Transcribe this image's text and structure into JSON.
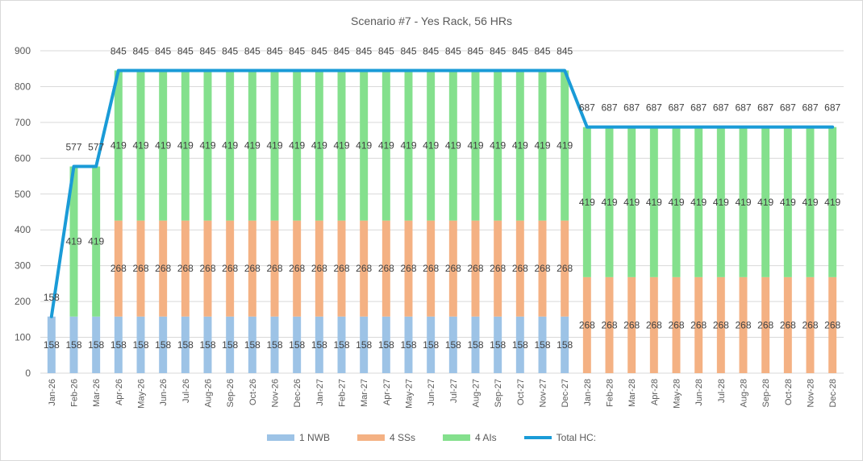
{
  "chart_data": {
    "type": "bar",
    "stacked": true,
    "title": "Scenario #7 - Yes Rack, 56 HRs",
    "xlabel": "",
    "ylabel": "",
    "ylim": [
      0,
      900
    ],
    "yticks": [
      0,
      100,
      200,
      300,
      400,
      500,
      600,
      700,
      800,
      900
    ],
    "grid": true,
    "legend_position": "bottom",
    "categories": [
      "Jan-26",
      "Feb-26",
      "Mar-26",
      "Apr-26",
      "May-26",
      "Jun-26",
      "Jul-26",
      "Aug-26",
      "Sep-26",
      "Oct-26",
      "Nov-26",
      "Dec-26",
      "Jan-27",
      "Feb-27",
      "Mar-27",
      "Apr-27",
      "May-27",
      "Jun-27",
      "Jul-27",
      "Aug-27",
      "Sep-27",
      "Oct-27",
      "Nov-27",
      "Dec-27",
      "Jan-28",
      "Feb-28",
      "Mar-28",
      "Apr-28",
      "May-28",
      "Jun-28",
      "Jul-28",
      "Aug-28",
      "Sep-28",
      "Oct-28",
      "Nov-28",
      "Dec-28"
    ],
    "series": [
      {
        "name": "1 NWB",
        "color": "#9dc3e6",
        "values": [
          158,
          158,
          158,
          158,
          158,
          158,
          158,
          158,
          158,
          158,
          158,
          158,
          158,
          158,
          158,
          158,
          158,
          158,
          158,
          158,
          158,
          158,
          158,
          158,
          0,
          0,
          0,
          0,
          0,
          0,
          0,
          0,
          0,
          0,
          0,
          0
        ]
      },
      {
        "name": "4 SSs",
        "color": "#f4b183",
        "values": [
          0,
          0,
          0,
          268,
          268,
          268,
          268,
          268,
          268,
          268,
          268,
          268,
          268,
          268,
          268,
          268,
          268,
          268,
          268,
          268,
          268,
          268,
          268,
          268,
          268,
          268,
          268,
          268,
          268,
          268,
          268,
          268,
          268,
          268,
          268,
          268
        ]
      },
      {
        "name": "4 AIs",
        "color": "#84e08d",
        "values": [
          0,
          419,
          419,
          419,
          419,
          419,
          419,
          419,
          419,
          419,
          419,
          419,
          419,
          419,
          419,
          419,
          419,
          419,
          419,
          419,
          419,
          419,
          419,
          419,
          419,
          419,
          419,
          419,
          419,
          419,
          419,
          419,
          419,
          419,
          419,
          419
        ]
      }
    ],
    "line": {
      "name": "Total HC:",
      "color": "#1a9bd7",
      "values": [
        158,
        577,
        577,
        845,
        845,
        845,
        845,
        845,
        845,
        845,
        845,
        845,
        845,
        845,
        845,
        845,
        845,
        845,
        845,
        845,
        845,
        845,
        845,
        845,
        687,
        687,
        687,
        687,
        687,
        687,
        687,
        687,
        687,
        687,
        687,
        687
      ]
    }
  }
}
